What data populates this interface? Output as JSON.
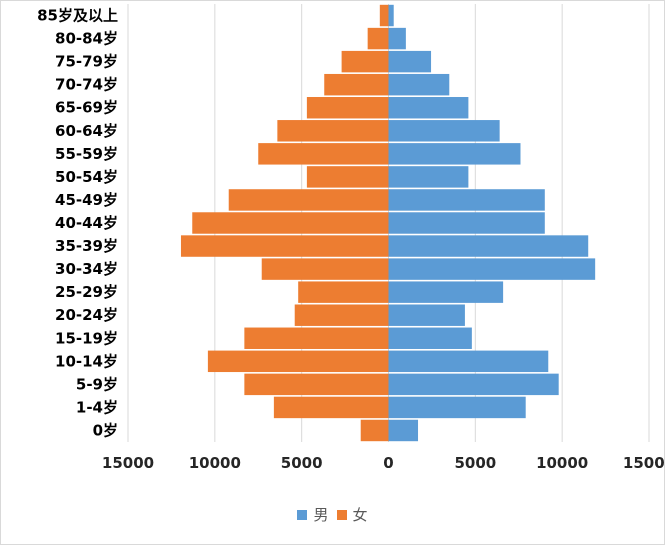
{
  "chart_data": {
    "type": "bar",
    "orientation": "horizontal",
    "subtype": "population-pyramid",
    "title": "",
    "xlabel": "",
    "ylabel": "",
    "xlim": [
      -15000,
      15000
    ],
    "x_ticks": [
      -15000,
      -10000,
      -5000,
      0,
      5000,
      10000,
      15000
    ],
    "x_tick_labels": [
      "15000",
      "10000",
      "5000",
      "0",
      "5000",
      "10000",
      "15000"
    ],
    "grid": true,
    "legend_position": "bottom",
    "categories": [
      "85岁及以上",
      "80-84岁",
      "75-79岁",
      "70-74岁",
      "65-69岁",
      "60-64岁",
      "55-59岁",
      "50-54岁",
      "45-49岁",
      "40-44岁",
      "35-39岁",
      "30-34岁",
      "25-29岁",
      "20-24岁",
      "15-19岁",
      "10-14岁",
      "5-9岁",
      "1-4岁",
      "0岁"
    ],
    "series": [
      {
        "name": "男",
        "color": "#5B9BD5",
        "values": [
          300,
          1000,
          2450,
          3500,
          4600,
          6400,
          7600,
          4600,
          9000,
          9000,
          11500,
          11900,
          6600,
          4400,
          4800,
          9200,
          9800,
          7900,
          1700
        ]
      },
      {
        "name": "女",
        "color": "#ED7D31",
        "values": [
          500,
          1200,
          2700,
          3700,
          4700,
          6400,
          7500,
          4700,
          9200,
          11300,
          11950,
          7300,
          5200,
          5400,
          8300,
          10400,
          8300,
          6600,
          1600
        ]
      }
    ]
  }
}
